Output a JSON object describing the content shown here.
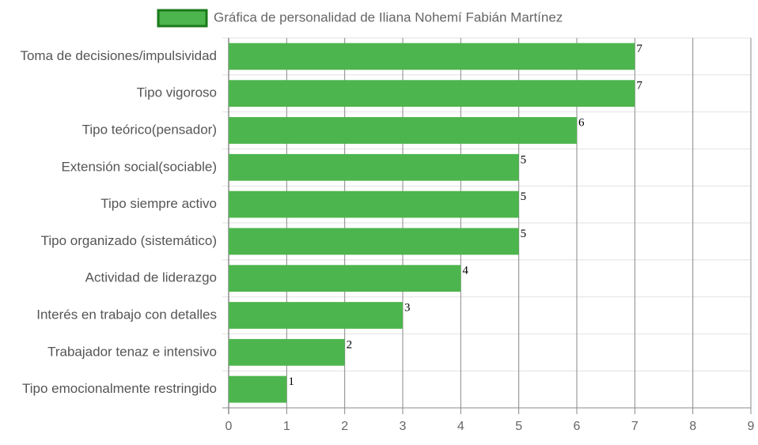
{
  "chart_data": {
    "type": "bar",
    "orientation": "horizontal",
    "legend": "Gráfica de personalidad de Iliana Nohemí Fabián Martínez",
    "color": "#4db54d",
    "categories": [
      "Toma de decisiones/impulsividad",
      "Tipo vigoroso",
      "Tipo teórico(pensador)",
      "Extensión social(sociable)",
      "Tipo siempre activo",
      "Tipo organizado (sistemático)",
      "Actividad de liderazgo",
      "Interés en trabajo con detalles",
      "Trabajador tenaz e intensivo",
      "Tipo emocionalmente restringido"
    ],
    "values": [
      7,
      7,
      6,
      5,
      5,
      5,
      4,
      3,
      2,
      1
    ],
    "xlim": [
      0,
      9
    ],
    "xticks": [
      0,
      1,
      2,
      3,
      4,
      5,
      6,
      7,
      8,
      9
    ],
    "grid": true
  }
}
